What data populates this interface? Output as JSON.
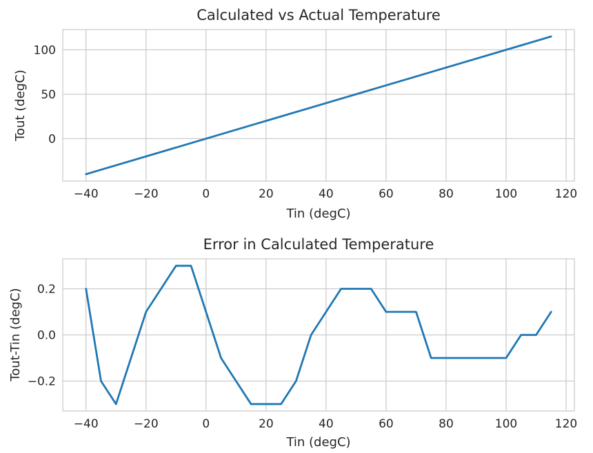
{
  "chart_data": [
    {
      "type": "line",
      "title": "Calculated vs Actual Temperature",
      "xlabel": "Tin (degC)",
      "ylabel": "Tout (degC)",
      "xlim": [
        -47.75,
        122.75
      ],
      "ylim": [
        -47.75,
        122.75
      ],
      "xticks": [
        -40,
        -20,
        0,
        20,
        40,
        60,
        80,
        100,
        120
      ],
      "yticks": [
        0,
        50,
        100
      ],
      "xtick_labels": [
        "−40",
        "−20",
        "0",
        "20",
        "40",
        "60",
        "80",
        "100",
        "120"
      ],
      "ytick_labels": [
        "0",
        "50",
        "100"
      ],
      "grid": true,
      "series": [
        {
          "x": [
            -40,
            115
          ],
          "y": [
            -40,
            115
          ]
        }
      ]
    },
    {
      "type": "line",
      "title": "Error in Calculated Temperature",
      "xlabel": "Tin (degC)",
      "ylabel": "Tout-Tin (degC)",
      "xlim": [
        -47.75,
        122.75
      ],
      "ylim": [
        -0.33,
        0.33
      ],
      "xticks": [
        -40,
        -20,
        0,
        20,
        40,
        60,
        80,
        100,
        120
      ],
      "yticks": [
        -0.2,
        0.0,
        0.2
      ],
      "xtick_labels": [
        "−40",
        "−20",
        "0",
        "20",
        "40",
        "60",
        "80",
        "100",
        "120"
      ],
      "ytick_labels": [
        "−0.2",
        "0.0",
        "0.2"
      ],
      "grid": true,
      "series": [
        {
          "x": [
            -40,
            -35,
            -30,
            -25,
            -20,
            -15,
            -10,
            -5,
            0,
            5,
            10,
            15,
            20,
            25,
            30,
            35,
            40,
            45,
            50,
            55,
            60,
            65,
            70,
            75,
            80,
            85,
            90,
            95,
            100,
            105,
            110,
            115
          ],
          "y": [
            0.2,
            -0.2,
            -0.3,
            -0.1,
            0.1,
            0.2,
            0.3,
            0.3,
            0.1,
            -0.1,
            -0.2,
            -0.3,
            -0.3,
            -0.3,
            -0.2,
            0.0,
            0.1,
            0.2,
            0.2,
            0.2,
            0.1,
            0.1,
            0.1,
            -0.1,
            -0.1,
            -0.1,
            -0.1,
            -0.1,
            -0.1,
            0.0,
            0.0,
            0.1
          ]
        }
      ]
    }
  ]
}
